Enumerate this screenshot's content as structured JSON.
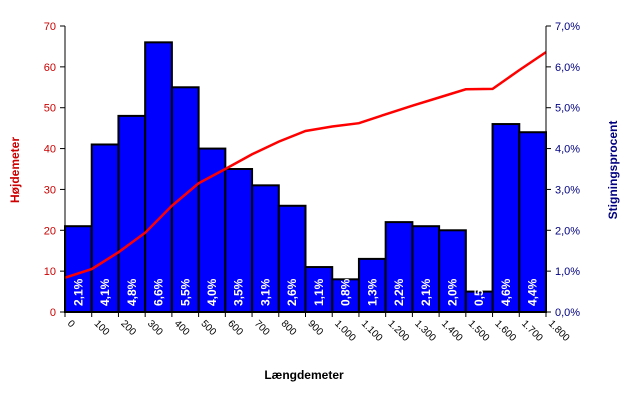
{
  "chart_data": {
    "type": "bar",
    "title": "",
    "xlabel": "Længdemeter",
    "ylabel_left": "Højdemeter",
    "ylabel_right": "Stigningsprocent",
    "x_ticks": [
      "0",
      "100",
      "200",
      "300",
      "400",
      "500",
      "600",
      "700",
      "800",
      "900",
      "1.000",
      "1.100",
      "1.200",
      "1.300",
      "1.400",
      "1.500",
      "1.600",
      "1.700",
      "1.800"
    ],
    "left_axis": {
      "ylim": [
        0,
        70
      ],
      "ticks": [
        "0",
        "10",
        "20",
        "30",
        "40",
        "50",
        "60",
        "70"
      ]
    },
    "right_axis": {
      "ylim": [
        0,
        7.0
      ],
      "ticks": [
        "0,0%",
        "1,0%",
        "2,0%",
        "3,0%",
        "4,0%",
        "5,0%",
        "6,0%",
        "7,0%"
      ]
    },
    "bar_series": {
      "name": "Stigningsprocent",
      "axis": "right",
      "values": [
        2.1,
        4.1,
        4.8,
        6.6,
        5.5,
        4.0,
        3.5,
        3.1,
        2.6,
        1.1,
        0.8,
        1.3,
        2.2,
        2.1,
        2.0,
        0.5,
        4.6,
        4.4
      ],
      "labels": [
        "2,1%",
        "4,1%",
        "4,8%",
        "6,6%",
        "5,5%",
        "4,0%",
        "3,5%",
        "3,1%",
        "2,6%",
        "1,1%",
        "0,8%",
        "1,3%",
        "2,2%",
        "2,1%",
        "2,0%",
        "0,5%",
        "4,6%",
        "4,4%"
      ]
    },
    "line_series": {
      "name": "Højdemeter",
      "axis": "left",
      "x": [
        0,
        100,
        200,
        300,
        400,
        500,
        600,
        700,
        800,
        900,
        1000,
        1100,
        1200,
        1300,
        1400,
        1500,
        1600,
        1700,
        1800
      ],
      "values": [
        8.4,
        10.5,
        14.6,
        19.4,
        26.0,
        31.5,
        35.0,
        38.6,
        41.7,
        44.3,
        45.4,
        46.2,
        48.4,
        50.5,
        52.5,
        54.5,
        54.6,
        59.2,
        63.6
      ]
    },
    "colors": {
      "bar_fill": "#0000ff",
      "bar_stroke": "#000000",
      "line": "#ff0000",
      "left_axis_text": "#cc0000",
      "right_axis_text": "#000080"
    },
    "grid": false,
    "legend": "none"
  }
}
